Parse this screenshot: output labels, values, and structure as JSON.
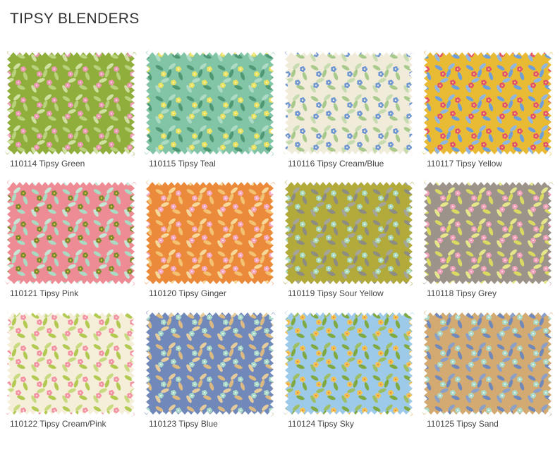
{
  "header": {
    "title": "TIPSY BLENDERS"
  },
  "items": [
    {
      "label": "110114 Tipsy Green"
    },
    {
      "label": "110115 Tipsy Teal"
    },
    {
      "label": "110116 Tipsy Cream/Blue"
    },
    {
      "label": "110117 Tipsy Yellow"
    },
    {
      "label": "110121 Tipsy Pink"
    },
    {
      "label": "110120 Tipsy Ginger"
    },
    {
      "label": "110119 Tipsy Sour Yellow"
    },
    {
      "label": "110118 Tipsy Grey"
    },
    {
      "label": "110122 Tipsy Cream/Pink"
    },
    {
      "label": "110123 Tipsy Blue"
    },
    {
      "label": "110124 Tipsy Sky"
    },
    {
      "label": "110125 Tipsy Sand"
    }
  ]
}
